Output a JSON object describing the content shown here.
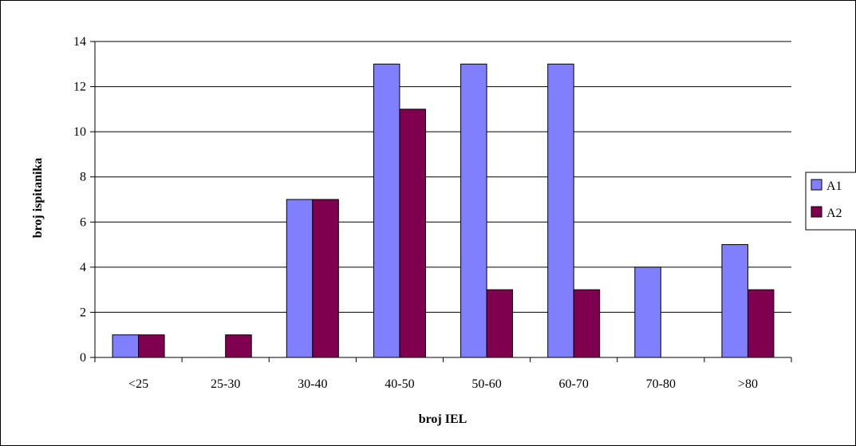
{
  "chart_data": {
    "type": "bar",
    "title": "",
    "xlabel": "broj IEL",
    "ylabel": "broj ispitanika",
    "categories": [
      "<25",
      "25-30",
      "30-40",
      "40-50",
      "50-60",
      "60-70",
      "70-80",
      ">80"
    ],
    "series": [
      {
        "name": "A1",
        "color": "#8080ff",
        "values": [
          1,
          0,
          7,
          13,
          13,
          13,
          4,
          5
        ]
      },
      {
        "name": "A2",
        "color": "#800050",
        "values": [
          1,
          1,
          7,
          11,
          3,
          3,
          0,
          3
        ]
      }
    ],
    "ylim": [
      0,
      14
    ],
    "yticks": [
      0,
      2,
      4,
      6,
      8,
      10,
      12,
      14
    ],
    "grid": true,
    "legend": "right"
  }
}
